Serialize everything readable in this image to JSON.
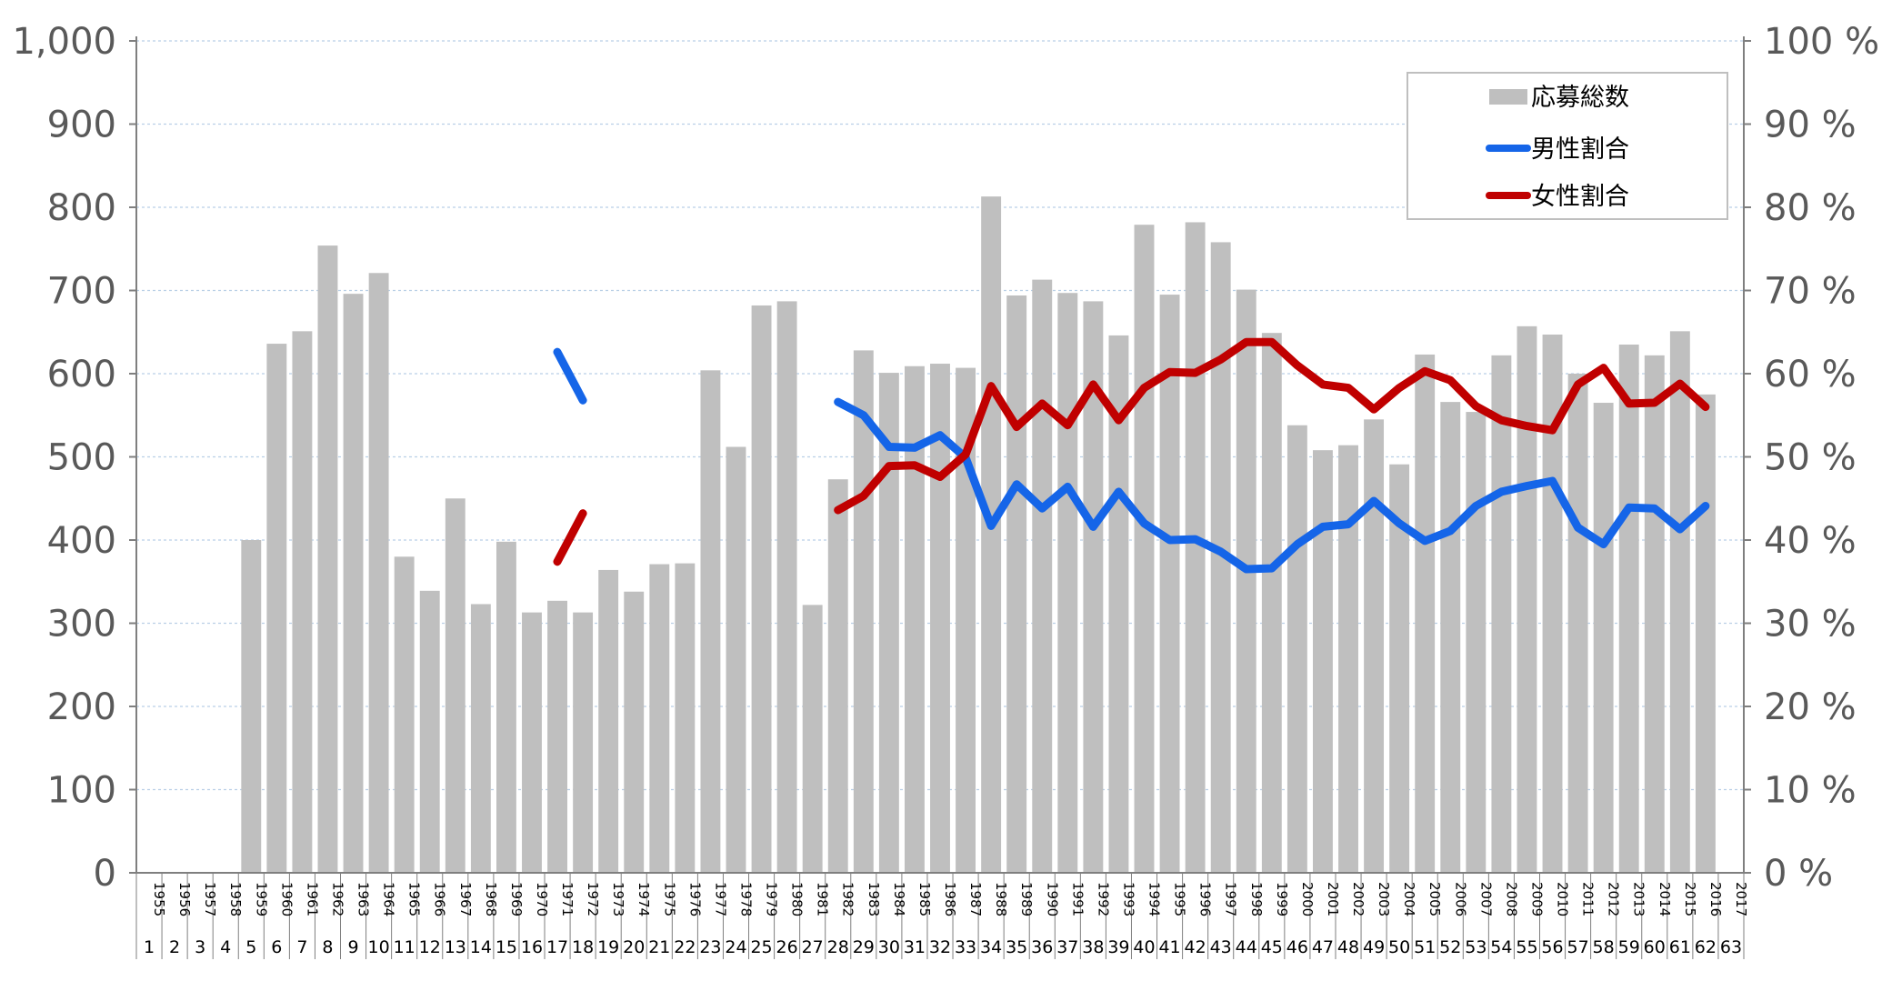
{
  "chart_data": {
    "type": "bar",
    "title": "",
    "xlabel": "",
    "ylabel": "",
    "years": [
      "1955",
      "1956",
      "1957",
      "1958",
      "1959",
      "1960",
      "1961",
      "1962",
      "1963",
      "1964",
      "1965",
      "1966",
      "1967",
      "1968",
      "1969",
      "1970",
      "1971",
      "1972",
      "1973",
      "1974",
      "1975",
      "1976",
      "1977",
      "1978",
      "1979",
      "1980",
      "1981",
      "1982",
      "1983",
      "1984",
      "1985",
      "1986",
      "1987",
      "1988",
      "1989",
      "1990",
      "1991",
      "1992",
      "1993",
      "1994",
      "1995",
      "1996",
      "1997",
      "1998",
      "1999",
      "2000",
      "2001",
      "2002",
      "2003",
      "2004",
      "2005",
      "2006",
      "2007",
      "2008",
      "2009",
      "2010",
      "2011",
      "2012",
      "2013",
      "2014",
      "2015",
      "2016",
      "2017"
    ],
    "era_numbers": [
      "1",
      "2",
      "3",
      "4",
      "5",
      "6",
      "7",
      "8",
      "9",
      "10",
      "11",
      "12",
      "13",
      "14",
      "15",
      "16",
      "17",
      "18",
      "19",
      "20",
      "21",
      "22",
      "23",
      "24",
      "25",
      "26",
      "27",
      "28",
      "29",
      "30",
      "31",
      "32",
      "33",
      "34",
      "35",
      "36",
      "37",
      "38",
      "39",
      "40",
      "41",
      "42",
      "43",
      "44",
      "45",
      "46",
      "47",
      "48",
      "49",
      "50",
      "51",
      "52",
      "53",
      "54",
      "55",
      "56",
      "57",
      "58",
      "59",
      "60",
      "61",
      "62",
      "63"
    ],
    "ylim_left": [
      0,
      1000
    ],
    "ylim_right": [
      0,
      100
    ],
    "yticks_left": [
      "0",
      "100",
      "200",
      "300",
      "400",
      "500",
      "600",
      "700",
      "800",
      "900",
      "1,000"
    ],
    "yticks_right": [
      "0 %",
      "10 %",
      "20 %",
      "30 %",
      "40 %",
      "50 %",
      "60 %",
      "70 %",
      "80 %",
      "90 %",
      "100 %"
    ],
    "series": [
      {
        "name": "応募総数",
        "kind": "bar",
        "axis": "left",
        "color": "#bfbfbf",
        "values": [
          null,
          null,
          null,
          null,
          400,
          636,
          651,
          754,
          696,
          721,
          380,
          339,
          450,
          323,
          398,
          313,
          327,
          313,
          364,
          338,
          371,
          372,
          604,
          512,
          682,
          687,
          322,
          473,
          628,
          601,
          609,
          612,
          607,
          813,
          694,
          713,
          697,
          687,
          646,
          779,
          695,
          782,
          758,
          701,
          649,
          538,
          508,
          514,
          545,
          491,
          623,
          566,
          554,
          622,
          657,
          647,
          600,
          565,
          635,
          622,
          651,
          575,
          null
        ]
      },
      {
        "name": "男性割合",
        "kind": "line",
        "axis": "right",
        "color": "#1565e8",
        "values": [
          null,
          null,
          null,
          null,
          null,
          null,
          null,
          null,
          null,
          null,
          null,
          null,
          null,
          null,
          null,
          null,
          62.6,
          56.8,
          null,
          null,
          null,
          null,
          null,
          null,
          null,
          null,
          null,
          56.6,
          55.0,
          51.2,
          51.1,
          52.6,
          49.9,
          41.7,
          46.7,
          43.8,
          46.4,
          41.6,
          45.8,
          42.0,
          40.0,
          40.1,
          38.6,
          36.5,
          36.6,
          39.5,
          41.6,
          41.9,
          44.7,
          42.0,
          39.9,
          41.1,
          44.1,
          45.8,
          46.5,
          47.1,
          41.5,
          39.5,
          43.9,
          43.8,
          41.3,
          44.1,
          null
        ]
      },
      {
        "name": "女性割合",
        "kind": "line",
        "axis": "right",
        "color": "#c00000",
        "values": [
          null,
          null,
          null,
          null,
          null,
          null,
          null,
          null,
          null,
          null,
          null,
          null,
          null,
          null,
          null,
          null,
          37.4,
          43.2,
          null,
          null,
          null,
          null,
          null,
          null,
          null,
          null,
          null,
          43.6,
          45.3,
          48.9,
          49.0,
          47.6,
          50.3,
          58.5,
          53.6,
          56.4,
          53.8,
          58.7,
          54.4,
          58.3,
          60.2,
          60.1,
          61.7,
          63.8,
          63.8,
          61.0,
          58.7,
          58.3,
          55.7,
          58.3,
          60.3,
          59.2,
          56.1,
          54.4,
          53.7,
          53.2,
          58.7,
          60.7,
          56.4,
          56.5,
          58.8,
          56.0,
          null
        ]
      }
    ],
    "legend": {
      "position": "top-right",
      "items": [
        {
          "label": "応募総数",
          "color": "#bfbfbf",
          "kind": "bar"
        },
        {
          "label": "男性割合",
          "color": "#1565e8",
          "kind": "line"
        },
        {
          "label": "女性割合",
          "color": "#c00000",
          "kind": "line"
        }
      ]
    },
    "grid": "horizontal dashed",
    "axis_color": "#7f7f7f",
    "grid_color": "#b9cfe6"
  }
}
